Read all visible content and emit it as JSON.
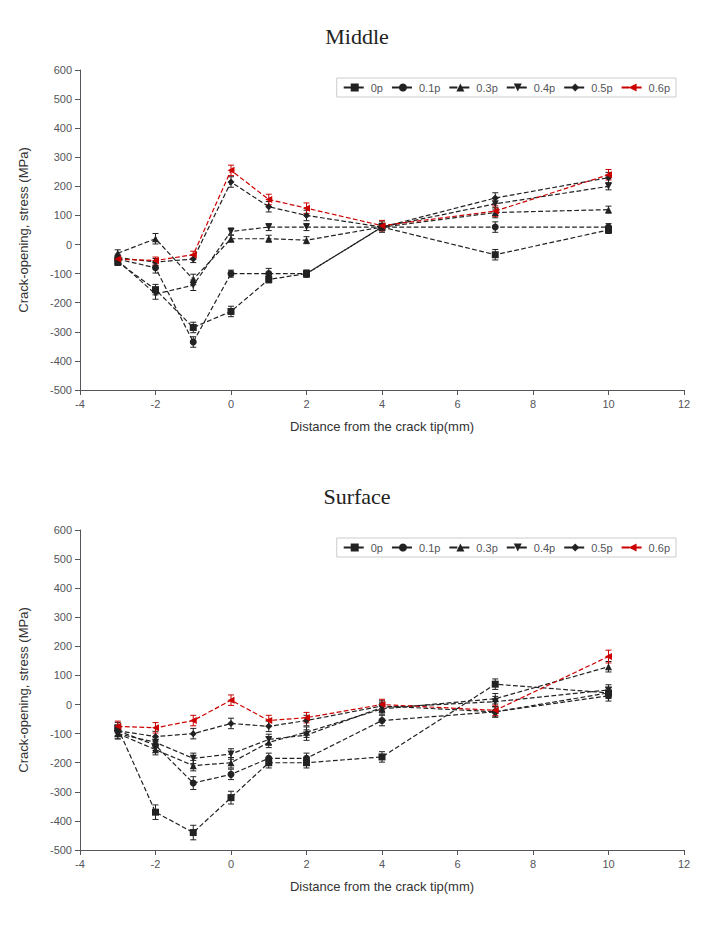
{
  "chart_data": [
    {
      "type": "line",
      "title": "Middle",
      "xlabel": "Distance from the crack tip(mm)",
      "ylabel": "Crack-opening, stress (MPa)",
      "x": [
        -3,
        -2,
        -1,
        0,
        1,
        2,
        4,
        7,
        10
      ],
      "series": [
        {
          "name": "0p",
          "color": "#222222",
          "marker": "square",
          "line_style": "dashed",
          "values": [
            -60,
            -155,
            -285,
            -230,
            -120,
            -100,
            60,
            -35,
            50
          ],
          "yerr": [
            12,
            18,
            18,
            18,
            12,
            12,
            12,
            18,
            12
          ]
        },
        {
          "name": "0.1p",
          "color": "#222222",
          "marker": "circle",
          "line_style": "dashed",
          "values": [
            -50,
            -80,
            -335,
            -100,
            -100,
            -100,
            60,
            60,
            60
          ],
          "yerr": [
            12,
            18,
            18,
            12,
            18,
            12,
            12,
            18,
            12
          ]
        },
        {
          "name": "0.3p",
          "color": "#222222",
          "marker": "triangle-up",
          "line_style": "dashed",
          "values": [
            -30,
            20,
            -120,
            20,
            20,
            15,
            60,
            110,
            120
          ],
          "yerr": [
            12,
            18,
            18,
            12,
            12,
            12,
            12,
            18,
            12
          ]
        },
        {
          "name": "0.4p",
          "color": "#222222",
          "marker": "triangle-down",
          "line_style": "dashed",
          "values": [
            -55,
            -170,
            -140,
            45,
            60,
            60,
            60,
            140,
            200
          ],
          "yerr": [
            12,
            18,
            18,
            12,
            12,
            12,
            12,
            18,
            12
          ]
        },
        {
          "name": "0.5p",
          "color": "#222222",
          "marker": "diamond",
          "line_style": "dashed",
          "values": [
            -45,
            -60,
            -50,
            215,
            130,
            100,
            60,
            160,
            230
          ],
          "yerr": [
            12,
            12,
            12,
            18,
            18,
            18,
            18,
            18,
            18
          ]
        },
        {
          "name": "0.6p",
          "color": "#cc0000",
          "marker": "triangle-left",
          "line_style": "dashed",
          "values": [
            -50,
            -55,
            -35,
            255,
            155,
            125,
            65,
            115,
            240
          ],
          "yerr": [
            12,
            12,
            12,
            18,
            18,
            18,
            18,
            18,
            18
          ]
        }
      ],
      "xlim": [
        -4,
        12
      ],
      "ylim": [
        -500,
        600
      ],
      "xticks": [
        -4,
        -2,
        0,
        2,
        4,
        6,
        8,
        10,
        12
      ],
      "yticks": [
        -500,
        -400,
        -300,
        -200,
        -100,
        0,
        100,
        200,
        300,
        400,
        500,
        600
      ],
      "grid": false,
      "legend": "upper right"
    },
    {
      "type": "line",
      "title": "Surface",
      "xlabel": "Distance from the crack tip(mm)",
      "ylabel": "Crack-opening, stress (MPa)",
      "x": [
        -3,
        -2,
        -1,
        0,
        1,
        2,
        4,
        7,
        10
      ],
      "series": [
        {
          "name": "0p",
          "color": "#222222",
          "marker": "square",
          "line_style": "dashed",
          "values": [
            -80,
            -370,
            -440,
            -320,
            -200,
            -200,
            -180,
            70,
            40
          ],
          "yerr": [
            18,
            25,
            25,
            22,
            18,
            18,
            18,
            18,
            18
          ]
        },
        {
          "name": "0.1p",
          "color": "#222222",
          "marker": "circle",
          "line_style": "dashed",
          "values": [
            -90,
            -140,
            -270,
            -240,
            -185,
            -185,
            -55,
            -25,
            30
          ],
          "yerr": [
            18,
            18,
            22,
            18,
            18,
            18,
            18,
            18,
            18
          ]
        },
        {
          "name": "0.3p",
          "color": "#222222",
          "marker": "triangle-up",
          "line_style": "dashed",
          "values": [
            -100,
            -155,
            -210,
            -200,
            -130,
            -95,
            -15,
            20,
            130
          ],
          "yerr": [
            18,
            18,
            18,
            18,
            18,
            18,
            18,
            18,
            18
          ]
        },
        {
          "name": "0.4p",
          "color": "#222222",
          "marker": "triangle-down",
          "line_style": "dashed",
          "values": [
            -100,
            -130,
            -185,
            -170,
            -120,
            -105,
            -10,
            10,
            50
          ],
          "yerr": [
            18,
            18,
            18,
            18,
            18,
            18,
            18,
            18,
            18
          ]
        },
        {
          "name": "0.5p",
          "color": "#222222",
          "marker": "diamond",
          "line_style": "dashed",
          "values": [
            -90,
            -110,
            -100,
            -65,
            -75,
            -55,
            -5,
            -25,
            40
          ],
          "yerr": [
            18,
            18,
            18,
            18,
            18,
            18,
            18,
            18,
            18
          ]
        },
        {
          "name": "0.6p",
          "color": "#cc0000",
          "marker": "triangle-left",
          "line_style": "dashed",
          "values": [
            -75,
            -80,
            -55,
            15,
            -55,
            -45,
            0,
            -20,
            165
          ],
          "yerr": [
            18,
            18,
            18,
            18,
            18,
            18,
            18,
            18,
            22
          ]
        }
      ],
      "xlim": [
        -4,
        12
      ],
      "ylim": [
        -500,
        600
      ],
      "xticks": [
        -4,
        -2,
        0,
        2,
        4,
        6,
        8,
        10,
        12
      ],
      "yticks": [
        -500,
        -400,
        -300,
        -200,
        -100,
        0,
        100,
        200,
        300,
        400,
        500,
        600
      ],
      "grid": false,
      "legend": "upper right"
    }
  ]
}
